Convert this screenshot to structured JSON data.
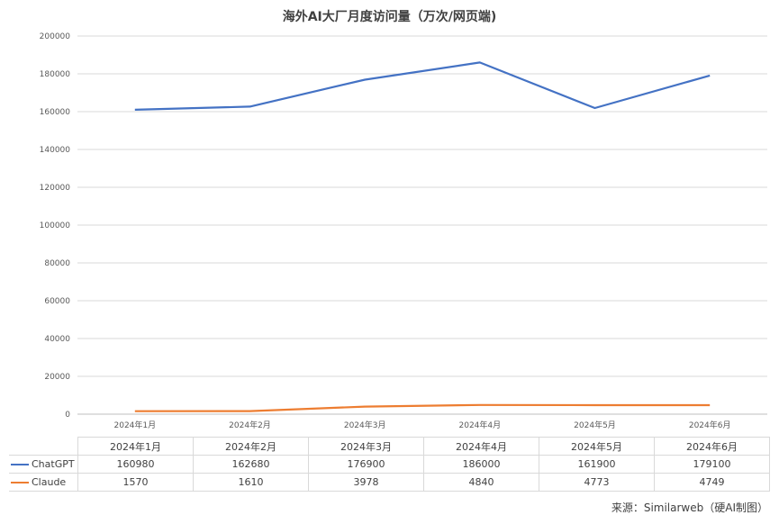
{
  "chart_data": {
    "type": "line",
    "title": "海外AI大厂月度访问量（万次/网页端)",
    "categories": [
      "2024年1月",
      "2024年2月",
      "2024年3月",
      "2024年4月",
      "2024年5月",
      "2024年6月"
    ],
    "ylim": [
      0,
      200000
    ],
    "yticks": [
      "0",
      "20000",
      "40000",
      "60000",
      "80000",
      "100000",
      "120000",
      "140000",
      "160000",
      "180000",
      "200000"
    ],
    "grid": true,
    "legend": "bottom-left (data table)",
    "series": [
      {
        "name": "ChatGPT",
        "color": "#4472C4",
        "values": [
          160980,
          162680,
          176900,
          186000,
          161900,
          179100
        ]
      },
      {
        "name": "Claude",
        "color": "#ED7D31",
        "values": [
          1570,
          1610,
          3978,
          4840,
          4773,
          4749
        ]
      }
    ]
  },
  "table": {
    "rows": [
      {
        "label": "ChatGPT",
        "values": [
          "160980",
          "162680",
          "176900",
          "186000",
          "161900",
          "179100"
        ]
      },
      {
        "label": "Claude",
        "values": [
          "1570",
          "1610",
          "3978",
          "4840",
          "4773",
          "4749"
        ]
      }
    ]
  },
  "source": "来源：Similarweb（硬AI制图）"
}
